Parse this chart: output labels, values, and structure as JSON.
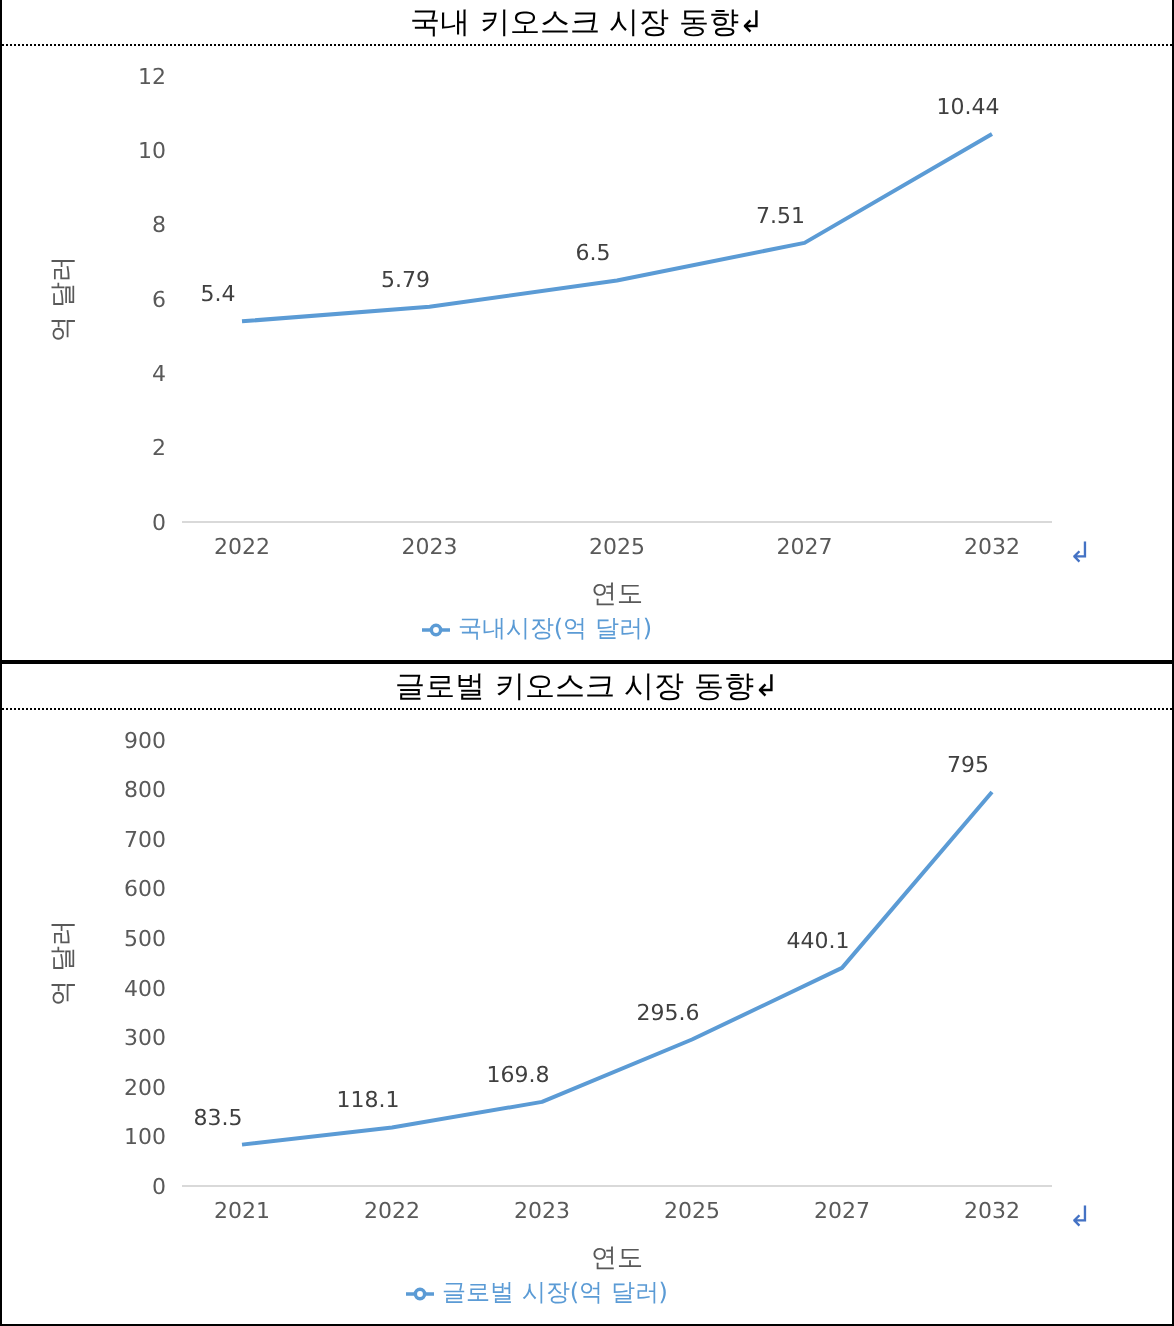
{
  "chart_data": [
    {
      "type": "line",
      "title": "국내 키오스크 시장 동향↲",
      "categories": [
        "2022",
        "2023",
        "2025",
        "2027",
        "2032"
      ],
      "series": [
        {
          "name": "국내시장(억 달러)",
          "color": "#5b9bd5",
          "values": [
            5.4,
            5.79,
            6.5,
            7.51,
            10.44
          ]
        }
      ],
      "ylim": [
        0,
        12
      ],
      "yticks": [
        0,
        2,
        4,
        6,
        8,
        10,
        12
      ],
      "xlabel": "연도",
      "ylabel": "억 달러",
      "data_labels": true,
      "legend": "bottom",
      "grid": false,
      "marker": "none",
      "annotations": [
        "↲"
      ]
    },
    {
      "type": "line",
      "title": "글로벌 키오스크 시장 동향↲",
      "categories": [
        "2021",
        "2022",
        "2023",
        "2025",
        "2027",
        "2032"
      ],
      "series": [
        {
          "name": "글로벌 시장(억 달러)",
          "color": "#5b9bd5",
          "values": [
            83.5,
            118.1,
            169.8,
            295.6,
            440.1,
            795
          ]
        }
      ],
      "ylim": [
        0,
        900
      ],
      "yticks": [
        0,
        100,
        200,
        300,
        400,
        500,
        600,
        700,
        800,
        900
      ],
      "xlabel": "연도",
      "ylabel": "억 달러",
      "data_labels": true,
      "legend": "bottom",
      "grid": false,
      "marker": "none",
      "annotations": [
        "↲"
      ]
    }
  ]
}
